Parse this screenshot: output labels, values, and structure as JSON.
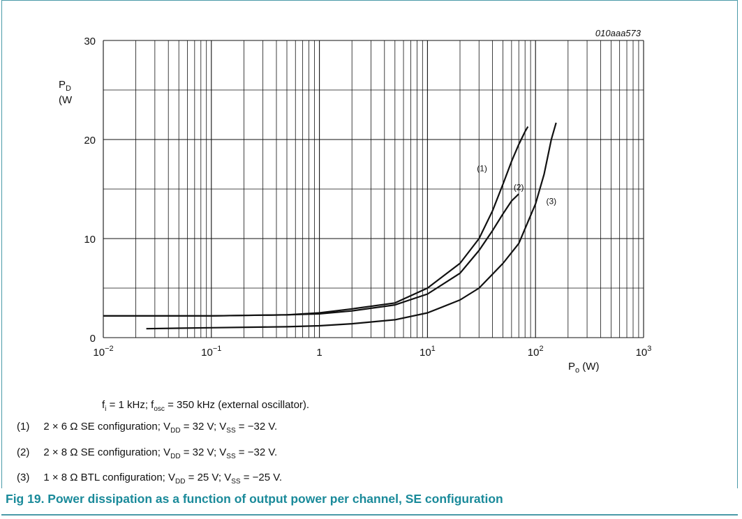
{
  "chart_data": {
    "type": "line",
    "figure_tag": "010aaa573",
    "ylabel_main": "P",
    "ylabel_sub": "D",
    "ylabel_unit": "(W",
    "xlabel_main": "P",
    "xlabel_sub": "o",
    "xlabel_unit": " (W)",
    "xscale": "log",
    "xlim": [
      0.01,
      1000
    ],
    "ylim": [
      0,
      30
    ],
    "grid": true,
    "y_ticks": [
      "0",
      "10",
      "20",
      "30"
    ],
    "x_ticks": [
      {
        "base": "10",
        "exp": "−2"
      },
      {
        "base": "10",
        "exp": "−1"
      },
      {
        "base": "1",
        "exp": ""
      },
      {
        "base": "10",
        "exp": "1"
      },
      {
        "base": "10",
        "exp": "2"
      },
      {
        "base": "10",
        "exp": "3"
      }
    ],
    "series": [
      {
        "name": "(1)",
        "x": [
          0.01,
          0.1,
          0.5,
          1,
          2,
          5,
          10,
          20,
          30,
          40,
          50,
          60,
          70,
          80,
          85
        ],
        "y": [
          2.2,
          2.2,
          2.3,
          2.5,
          2.9,
          3.5,
          5.0,
          7.5,
          10.0,
          12.8,
          15.5,
          17.8,
          19.5,
          20.8,
          21.3
        ]
      },
      {
        "name": "(2)",
        "x": [
          0.01,
          0.1,
          0.5,
          1,
          2,
          5,
          10,
          20,
          30,
          40,
          50,
          60,
          70
        ],
        "y": [
          2.2,
          2.2,
          2.3,
          2.4,
          2.7,
          3.3,
          4.4,
          6.5,
          8.8,
          10.8,
          12.5,
          13.8,
          14.5
        ]
      },
      {
        "name": "(3)",
        "x": [
          0.025,
          0.1,
          0.5,
          1,
          2,
          5,
          10,
          20,
          30,
          50,
          70,
          100,
          120,
          140,
          155
        ],
        "y": [
          0.9,
          1.0,
          1.1,
          1.2,
          1.4,
          1.8,
          2.5,
          3.8,
          5.0,
          7.5,
          9.5,
          13.5,
          16.5,
          20.0,
          21.7
        ]
      }
    ]
  },
  "notes": {
    "conditions": {
      "a": "f",
      "a_sub": "i",
      "b": " = 1 kHz; f",
      "b_sub": "osc",
      "c": " = 350 kHz (external oscillator)."
    },
    "items": [
      {
        "num": "(1)",
        "t1": "2 × 6 Ω SE configuration; V",
        "s1": "DD",
        "t2": " = 32 V; V",
        "s2": "SS",
        "t3": " = −32 V."
      },
      {
        "num": "(2)",
        "t1": "2 × 8 Ω SE configuration; V",
        "s1": "DD",
        "t2": " = 32 V; V",
        "s2": "SS",
        "t3": " = −32 V."
      },
      {
        "num": "(3)",
        "t1": "1 × 8 Ω BTL configuration; V",
        "s1": "DD",
        "t2": " = 25 V; V",
        "s2": "SS",
        "t3": " = −25 V."
      }
    ]
  },
  "caption": "Fig 19.  Power dissipation as a function of output power per channel, SE configuration",
  "colors": {
    "accent": "#1a8a9a",
    "frame": "#4a9aa8",
    "ink": "#111111"
  }
}
